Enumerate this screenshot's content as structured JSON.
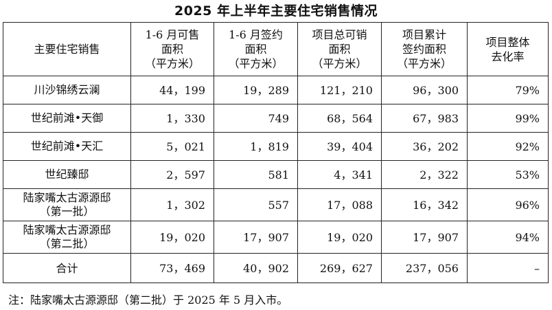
{
  "title": "2025 年上半年主要住宅销售情况",
  "table": {
    "headers": [
      [
        "主要住宅销售"
      ],
      [
        "1-6 月可售",
        "面积",
        "（平方米）"
      ],
      [
        "1-6 月签约",
        "面积",
        "（平方米）"
      ],
      [
        "项目总可销",
        "面积",
        "（平方米）"
      ],
      [
        "项目累计",
        "签约面积",
        "（平方米）"
      ],
      [
        "项目整体",
        "去化率"
      ]
    ],
    "rows": [
      {
        "name": [
          "川沙锦绣云澜"
        ],
        "available": "44，199",
        "signed": "19，289",
        "total": "121，210",
        "cumulative": "96，300",
        "rate": "79%"
      },
      {
        "name": [
          "世纪前滩•天御"
        ],
        "available": "1，330",
        "signed": "749",
        "total": "68，564",
        "cumulative": "67，983",
        "rate": "99%"
      },
      {
        "name": [
          "世纪前滩•天汇"
        ],
        "available": "5，021",
        "signed": "1，819",
        "total": "39，404",
        "cumulative": "36，202",
        "rate": "92%"
      },
      {
        "name": [
          "世纪臻邸"
        ],
        "available": "2，597",
        "signed": "581",
        "total": "4，341",
        "cumulative": "2，322",
        "rate": "53%"
      },
      {
        "name": [
          "陆家嘴太古源源邸",
          "（第一批）"
        ],
        "available": "1，302",
        "signed": "557",
        "total": "17，088",
        "cumulative": "16，342",
        "rate": "96%"
      },
      {
        "name": [
          "陆家嘴太古源源邸",
          "（第二批）"
        ],
        "available": "19，020",
        "signed": "17，907",
        "total": "19，020",
        "cumulative": "17，907",
        "rate": "94%"
      }
    ],
    "total_row": {
      "name": "合计",
      "available": "73，469",
      "signed": "40，902",
      "total": "269，627",
      "cumulative": "237，056",
      "rate": "–"
    }
  },
  "note": "注：陆家嘴太古源源邸（第二批）于 2025 年 5 月入市。"
}
